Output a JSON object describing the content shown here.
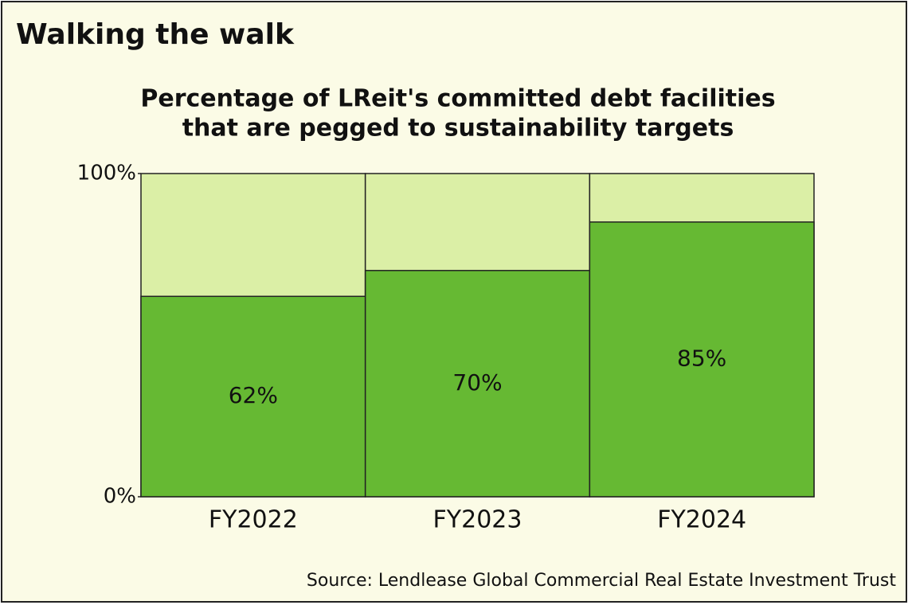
{
  "chart_data": {
    "type": "bar",
    "title": "Walking the walk",
    "subtitle": [
      "Percentage of LReit's committed debt facilities",
      "that are pegged to sustainability targets"
    ],
    "categories": [
      "FY2022",
      "FY2023",
      "FY2024"
    ],
    "values": [
      62,
      70,
      85
    ],
    "value_labels": [
      "62%",
      "70%",
      "85%"
    ],
    "color": "#66b933",
    "track_color": "#dbefa6",
    "ylim": [
      0,
      100
    ],
    "yticks": [
      {
        "value": 0,
        "label": "0%"
      },
      {
        "value": 100,
        "label": "100%"
      }
    ],
    "source": "Source: Lendlease Global Commercial Real Estate Investment Trust"
  }
}
